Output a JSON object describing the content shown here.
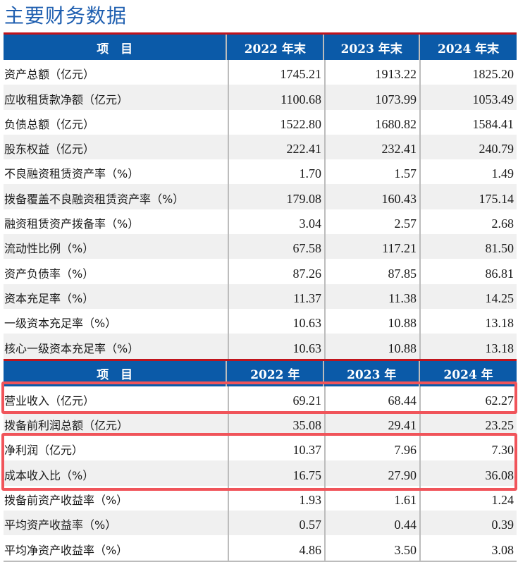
{
  "title": "主要财务数据",
  "section1": {
    "headers": [
      "项　目",
      "2022 年末",
      "2023 年末",
      "2024 年末"
    ],
    "rows": [
      {
        "label": "资产总额（亿元）",
        "v2022": "1745.21",
        "v2023": "1913.22",
        "v2024": "1825.20"
      },
      {
        "label": "应收租赁款净额（亿元）",
        "v2022": "1100.68",
        "v2023": "1073.99",
        "v2024": "1053.49"
      },
      {
        "label": "负债总额（亿元）",
        "v2022": "1522.80",
        "v2023": "1680.82",
        "v2024": "1584.41"
      },
      {
        "label": "股东权益（亿元）",
        "v2022": "222.41",
        "v2023": "232.41",
        "v2024": "240.79"
      },
      {
        "label": "不良融资租赁资产率（%）",
        "v2022": "1.70",
        "v2023": "1.57",
        "v2024": "1.49"
      },
      {
        "label": "拨备覆盖不良融资租赁资产率（%）",
        "v2022": "179.08",
        "v2023": "160.43",
        "v2024": "175.14"
      },
      {
        "label": "融资租赁资产拨备率（%）",
        "v2022": "3.04",
        "v2023": "2.57",
        "v2024": "2.68"
      },
      {
        "label": "流动性比例（%）",
        "v2022": "67.58",
        "v2023": "117.21",
        "v2024": "81.50"
      },
      {
        "label": "资产负债率（%）",
        "v2022": "87.26",
        "v2023": "87.85",
        "v2024": "86.81"
      },
      {
        "label": "资本充足率（%）",
        "v2022": "11.37",
        "v2023": "11.38",
        "v2024": "14.25"
      },
      {
        "label": "一级资本充足率（%）",
        "v2022": "10.63",
        "v2023": "10.88",
        "v2024": "13.18"
      },
      {
        "label": "核心一级资本充足率（%）",
        "v2022": "10.63",
        "v2023": "10.88",
        "v2024": "13.18"
      }
    ]
  },
  "section2": {
    "headers": [
      "项　目",
      "2022 年",
      "2023 年",
      "2024 年"
    ],
    "rows": [
      {
        "label": "营业收入（亿元）",
        "v2022": "69.21",
        "v2023": "68.44",
        "v2024": "62.27"
      },
      {
        "label": "拨备前利润总额（亿元）",
        "v2022": "35.08",
        "v2023": "29.41",
        "v2024": "23.25"
      },
      {
        "label": "净利润（亿元）",
        "v2022": "10.37",
        "v2023": "7.96",
        "v2024": "7.30"
      },
      {
        "label": "成本收入比（%）",
        "v2022": "16.75",
        "v2023": "27.90",
        "v2024": "36.08"
      },
      {
        "label": "拨备前资产收益率（%）",
        "v2022": "1.93",
        "v2023": "1.61",
        "v2024": "1.24"
      },
      {
        "label": "平均资产收益率（%）",
        "v2022": "0.57",
        "v2023": "0.44",
        "v2024": "0.39"
      },
      {
        "label": "平均净资产收益率（%）",
        "v2022": "4.86",
        "v2023": "3.50",
        "v2024": "3.08"
      }
    ]
  },
  "colors": {
    "header_bg": "#0b5aa8",
    "title": "#1f5fb0",
    "red_rule": "#c0141c",
    "highlight_box": "#f0545a",
    "alt_row": "#f0f0f0"
  }
}
